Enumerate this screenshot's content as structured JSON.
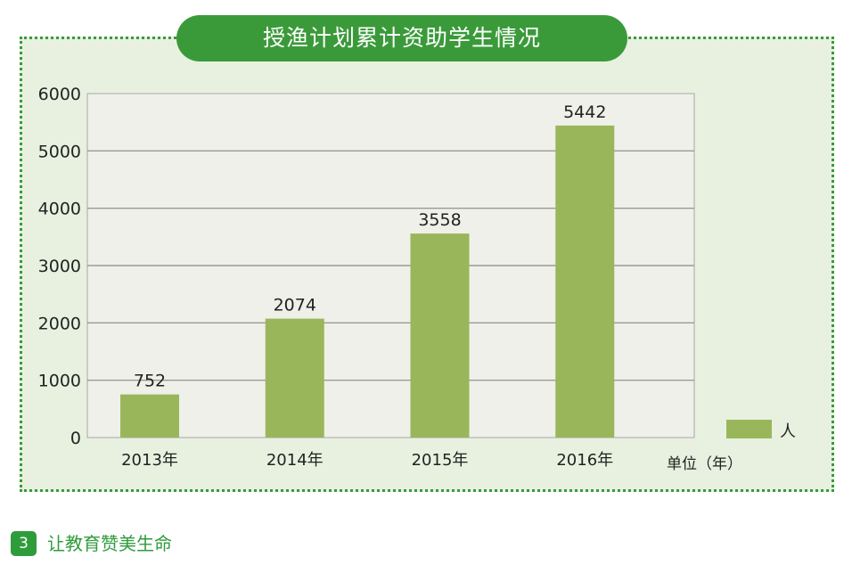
{
  "chart_data": {
    "type": "bar",
    "title": "授渔计划累计资助学生情况",
    "categories": [
      "2013年",
      "2014年",
      "2015年",
      "2016年"
    ],
    "series": [
      {
        "name": "人",
        "values": [
          752,
          2074,
          3558,
          5442
        ]
      }
    ],
    "data_labels": [
      "752",
      "2074",
      "3558",
      "5442"
    ],
    "xlabel": "单位（年）",
    "ylabel": "",
    "ylim": [
      0,
      6000
    ],
    "yticks": [
      "0",
      "1000",
      "2000",
      "3000",
      "4000",
      "5000",
      "6000"
    ],
    "grid": true,
    "legend_position": "bottom-right",
    "colors": {
      "bar": "#99b75a",
      "plot_bg": "#eff0e9",
      "panel_bg": "#e8f1e0",
      "accent": "#3a9a3a",
      "grid": "#9a9a9a"
    }
  },
  "section": {
    "number": "3",
    "title": "让教育赞美生命"
  }
}
